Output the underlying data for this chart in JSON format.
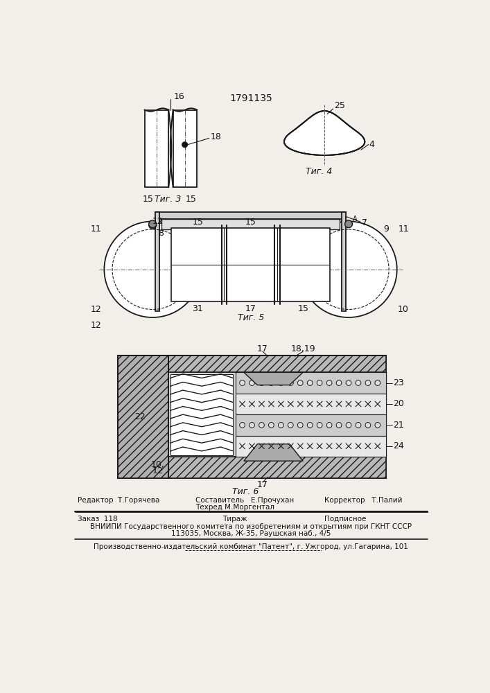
{
  "patent_number": "1791135",
  "background_color": "#f2efea",
  "fig3_label": "Τиг. 3",
  "fig4_label": "Τиг. 4",
  "fig5_label": "Τиг. 5",
  "fig6_label": "Τиг. 6",
  "editor_line": "Редактор  Т.Горячева",
  "compiler_line1": "Составитель   Е.Прочухан",
  "compiler_line2": "Техред М.Моргентал",
  "corrector_line": "Корректор   Т.Палий",
  "order_line": "Заказ  118",
  "tirazh_line": "Тираж",
  "podpisnoe_line": "Подписное",
  "vniiipi_line": "ВНИИПИ Государственного комитета по изобретениям и открытиям при ГКНТ СССР",
  "address_line": "113035, Москва, Ж-35, Раушская наб., 4/5",
  "publisher_line": "Производственно-издательский комбинат \"Патент\", г. Ужгород, ул.Гагарина, 101",
  "line_color": "#1a1a1a",
  "text_color": "#111111"
}
